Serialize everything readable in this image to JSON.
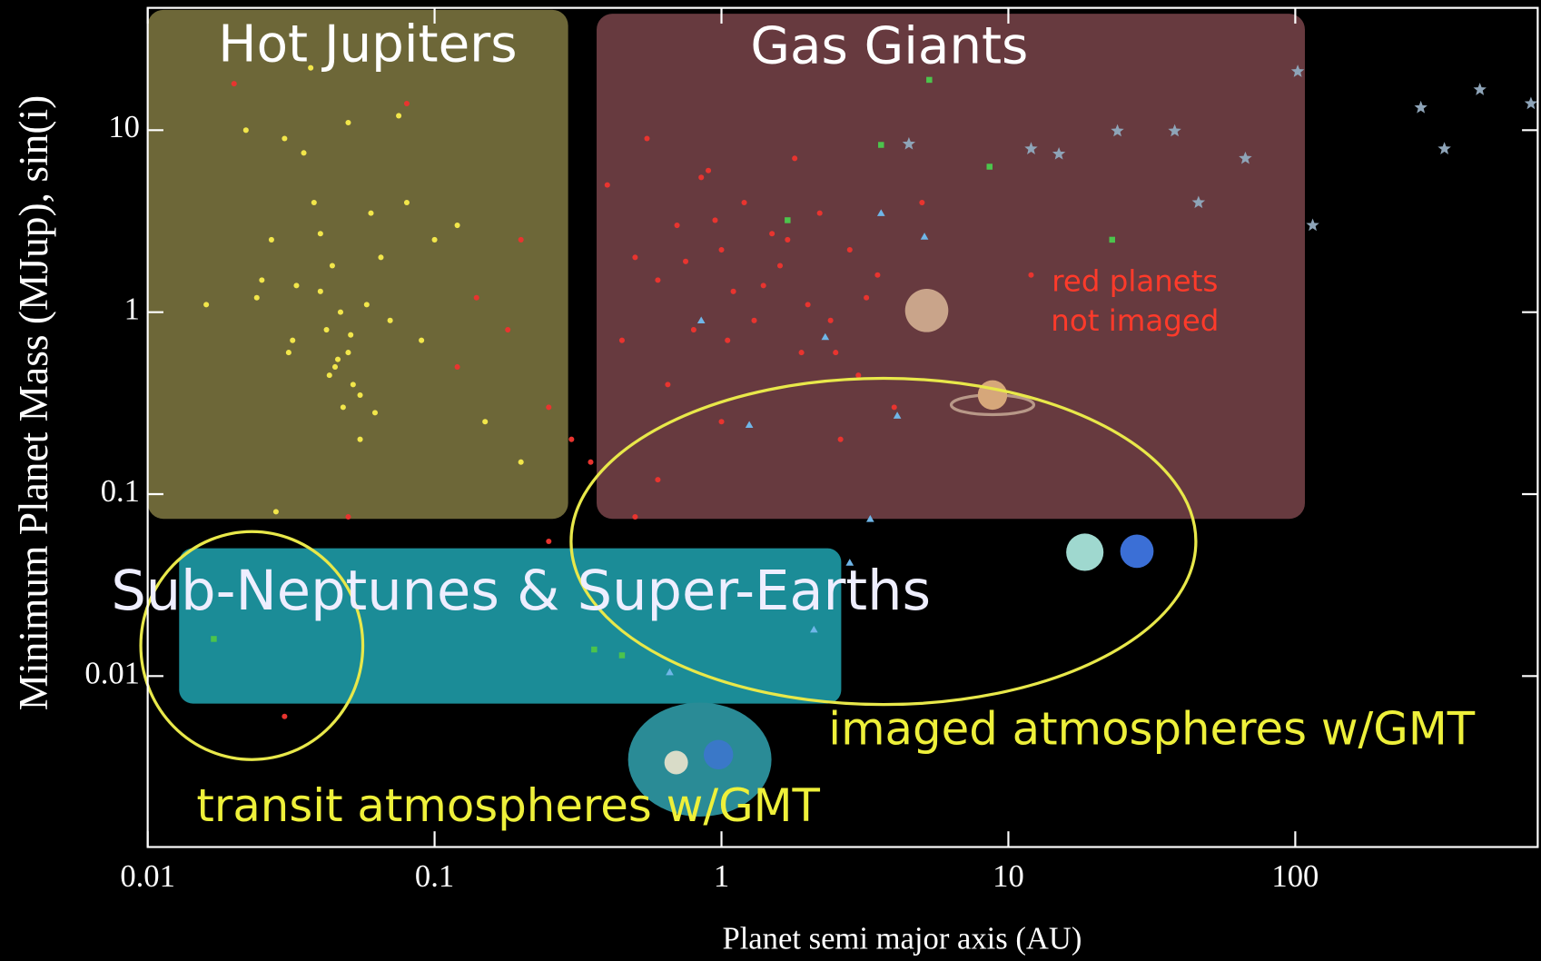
{
  "chart_data": {
    "type": "scatter",
    "xlabel": "Planet semi major axis (AU)",
    "ylabel": "Minimum Planet Mass (MJup),  sin(i)",
    "xscale": "log",
    "yscale": "log",
    "xlim": [
      0.01,
      700
    ],
    "ylim": [
      0.00115,
      47
    ],
    "xticks": [
      0.01,
      0.1,
      1,
      10,
      100
    ],
    "yticks": [
      10,
      1,
      0.1,
      0.01
    ],
    "annotations": [
      "Hot Jupiters",
      "Gas Giants",
      "Sub-Neptunes & Super-Earths",
      "red planets",
      "not imaged",
      "imaged atmospheres w/GMT",
      "transit atmospheres w/GMT"
    ],
    "series": [
      {
        "color": "#e8342f",
        "marker": "circle",
        "x": [
          0.02,
          0.08,
          0.12,
          0.2,
          0.25,
          0.3,
          0.18,
          0.14,
          0.35,
          0.4,
          0.5,
          0.6,
          0.7,
          0.8,
          0.9,
          1.0,
          1.1,
          1.2,
          1.3,
          1.5,
          1.6,
          1.8,
          2.0,
          2.2,
          2.5,
          2.8,
          3.0,
          3.5,
          4.0,
          5.0,
          0.45,
          0.55,
          0.65,
          0.75,
          0.85,
          0.95,
          1.05,
          1.4,
          1.7,
          2.4,
          3.2,
          0.5,
          0.6,
          1.0,
          1.9,
          2.6,
          12,
          0.03,
          0.05,
          0.25
        ],
        "values": [
          18,
          14,
          0.5,
          2.5,
          0.3,
          0.2,
          0.8,
          1.2,
          0.15,
          5,
          2,
          1.5,
          3,
          0.8,
          6,
          2.2,
          1.3,
          4,
          0.9,
          2.7,
          1.8,
          7,
          1.1,
          3.5,
          0.6,
          2.2,
          0.45,
          1.6,
          0.3,
          4,
          0.7,
          9,
          0.4,
          1.9,
          5.5,
          3.2,
          0.7,
          1.4,
          2.5,
          0.9,
          1.2,
          0.075,
          0.12,
          0.25,
          0.6,
          0.2,
          1.6,
          0.006,
          0.075,
          0.055
        ]
      },
      {
        "color": "#f2e64a",
        "marker": "circle",
        "x": [
          0.016,
          0.022,
          0.025,
          0.027,
          0.03,
          0.032,
          0.035,
          0.038,
          0.04,
          0.042,
          0.045,
          0.047,
          0.05,
          0.052,
          0.055,
          0.058,
          0.06,
          0.065,
          0.07,
          0.075,
          0.08,
          0.09,
          0.1,
          0.12,
          0.15,
          0.2,
          0.04,
          0.043,
          0.048,
          0.051,
          0.046,
          0.037,
          0.033,
          0.028,
          0.055,
          0.062,
          0.044,
          0.05,
          0.024,
          0.031
        ],
        "values": [
          1.1,
          10,
          1.5,
          2.5,
          9,
          0.7,
          7.5,
          4,
          1.3,
          0.8,
          0.5,
          1.0,
          0.6,
          0.4,
          0.35,
          1.1,
          3.5,
          2.0,
          0.9,
          12,
          4,
          0.7,
          2.5,
          3,
          0.25,
          0.15,
          2.7,
          0.45,
          0.3,
          0.75,
          0.55,
          22,
          1.4,
          0.08,
          0.2,
          0.28,
          1.8,
          11,
          1.2,
          0.6
        ]
      },
      {
        "color": "#4cc44c",
        "marker": "square",
        "x": [
          5.3,
          3.6,
          8.6,
          1.7,
          23,
          0.36,
          0.45,
          0.017
        ],
        "values": [
          18.9,
          8.3,
          6.3,
          3.2,
          2.5,
          0.014,
          0.013,
          0.016
        ]
      },
      {
        "color": "#6fb6e8",
        "marker": "triangle",
        "x": [
          3.6,
          5.1,
          0.85,
          2.3,
          1.25,
          4.1,
          3.3,
          2.8,
          2.1,
          0.66
        ],
        "values": [
          3.5,
          2.6,
          0.9,
          0.73,
          0.24,
          0.27,
          0.073,
          0.042,
          0.018,
          0.0105
        ]
      },
      {
        "color": "#8ea4b8",
        "marker": "star",
        "x": [
          102,
          274,
          440,
          331,
          663,
          24,
          38,
          12,
          15,
          67,
          46,
          4.5,
          115
        ],
        "values": [
          21,
          13.3,
          16.7,
          7.9,
          14,
          9.9,
          9.9,
          7.9,
          7.4,
          7,
          4,
          8.4,
          3.0
        ]
      }
    ]
  }
}
